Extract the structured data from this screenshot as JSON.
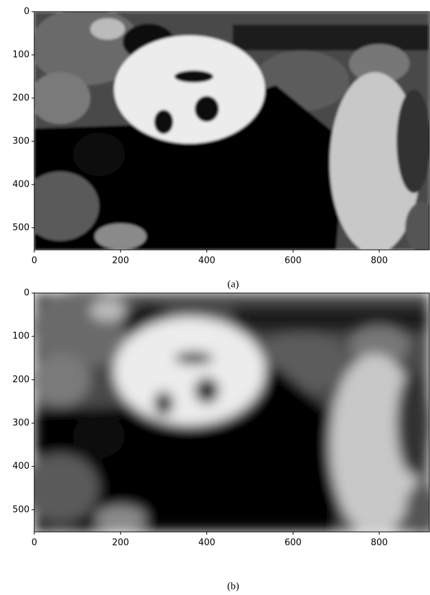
{
  "chart_data": [
    {
      "type": "image",
      "caption": "(a)",
      "xlim": [
        0,
        916
      ],
      "ylim": [
        551,
        0
      ],
      "xticks": [
        0,
        200,
        400,
        600,
        800
      ],
      "yticks": [
        0,
        100,
        200,
        300,
        400,
        500
      ],
      "blur": false
    },
    {
      "type": "image",
      "caption": "(b)",
      "xlim": [
        0,
        916
      ],
      "ylim": [
        551,
        0
      ],
      "xticks": [
        0,
        200,
        400,
        600,
        800
      ],
      "yticks": [
        0,
        100,
        200,
        300,
        400,
        500
      ],
      "blur": true
    }
  ]
}
